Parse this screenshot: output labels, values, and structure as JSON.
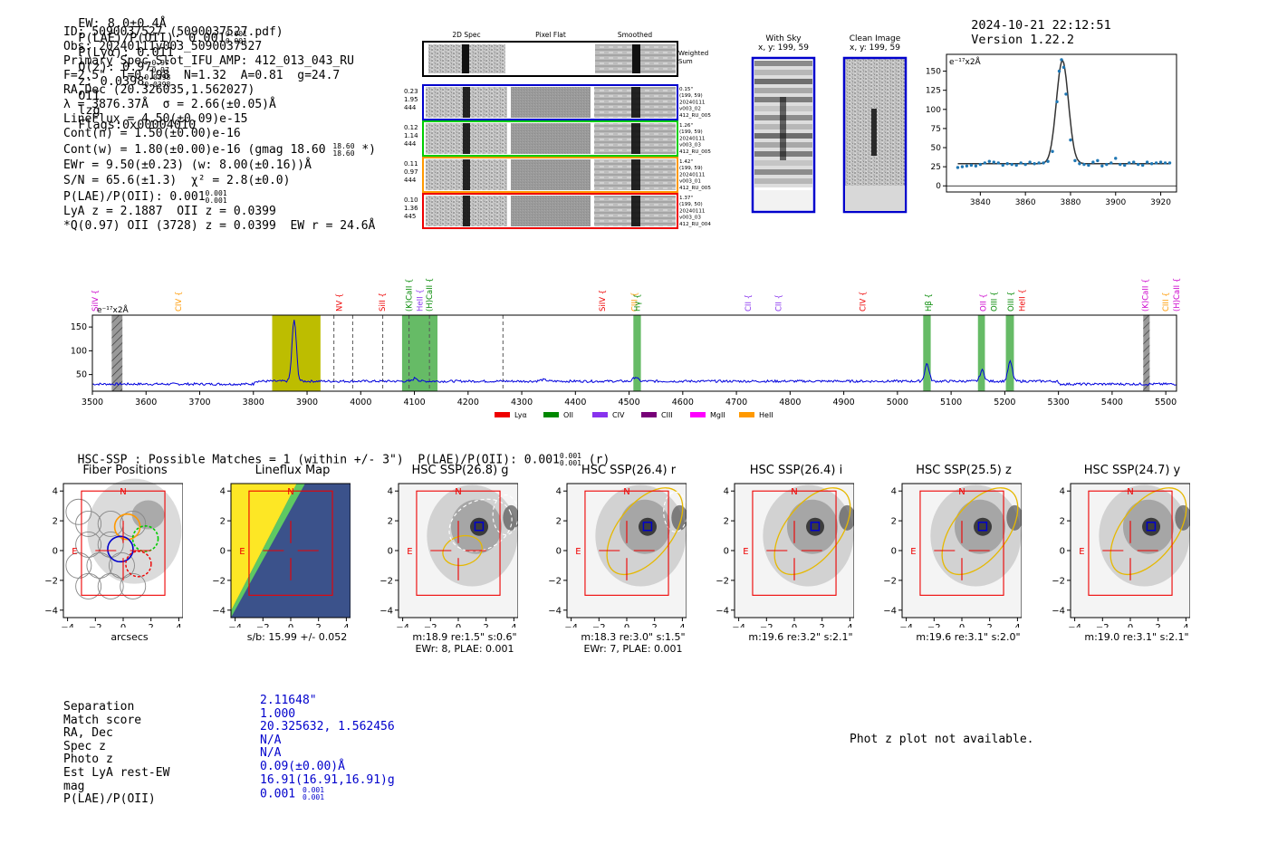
{
  "header": {
    "ew": "EW: 8.0±0.4Å",
    "plae_label": "P(LAE)/P(OII): 0.001",
    "plae_sup": "0.001",
    "plae_sub": "0.001",
    "plya": "P(Lyα): 0.011",
    "qz": "Q(z): 0.97",
    "qz_sup": "0.97",
    "qz_sub": "0.97",
    "z": "z: 0.0398",
    "z_sup": "0.0398",
    "z_sub": "0.0398",
    "z_line": "OII",
    "lzg": "lzg",
    "flags": "Flags:0x00004010",
    "datetime": "2024-10-21 22:12:51",
    "version": "Version 1.22.2"
  },
  "info": {
    "id": "ID: 5090037527 (5090037527.pdf)",
    "obs": "Obs: 20240111v003_5090037527",
    "primary": "Primary Spec_Slot_IFU_AMP: 412_013_043_RU",
    "fparams": "F=2.5\"  T=0.198  N=1.32  A=0.81  g=24.7",
    "radec": "RA,Dec (20.326035,1.562027)",
    "lambda": "λ = 3876.37Å  σ = 2.66(±0.05)Å",
    "lineflux": "LineFlux = 4.50(±0.09)e-15",
    "contn": "Cont(n) = 1.50(±0.00)e-16",
    "contw": "Cont(w) = 1.80(±0.00)e-16 (gmag 18.60",
    "contw_sup": "18.60",
    "contw_sub": "18.60",
    "contw_end": "*)",
    "ewr": "EWr = 9.50(±0.23) (w: 8.00(±0.16))Å",
    "sn": "S/N = 65.6(±1.3)  χ² = 2.8(±0.0)",
    "plae": "P(LAE)/P(OII): 0.001",
    "plae_sup": "0.001",
    "plae_sub": "0.001",
    "lya": "LyA z = 2.1887  OII z = 0.0399",
    "q": "*Q(0.97) OII (3728) z = 0.0399  EW r = 24.6Å"
  },
  "cutouts": {
    "col_titles": [
      "2D Spec",
      "Pixel Flat",
      "Smoothed"
    ],
    "weighted": [
      "Weighted",
      "Sum"
    ],
    "rows": [
      {
        "left": [
          "0.23",
          "1.95",
          "444"
        ],
        "right": [
          "0.15\"",
          "(199, 59)",
          "20240111",
          "v003_02",
          "412_RU_005"
        ],
        "color": "#0000cc"
      },
      {
        "left": [
          "0.12",
          "1.14",
          "444"
        ],
        "right": [
          "1.26\"",
          "(199, 59)",
          "20240111",
          "v003_03",
          "412_RU_005"
        ],
        "color": "#00cc00"
      },
      {
        "left": [
          "0.11",
          "0.97",
          "444"
        ],
        "right": [
          "1.42\"",
          "(199, 59)",
          "20240111",
          "v003_01",
          "412_RU_005"
        ],
        "color": "#ff9900"
      },
      {
        "left": [
          "0.10",
          "1.36",
          "445"
        ],
        "right": [
          "1.37\"",
          "(199, 50)",
          "20240111",
          "v003_03",
          "412_RU_004"
        ],
        "color": "#ee0000"
      }
    ]
  },
  "sky": {
    "with_sky": [
      "With Sky",
      "x, y: 199, 59"
    ],
    "clean": [
      "Clean Image",
      "x, y: 199, 59"
    ]
  },
  "fit_plot": {
    "unit": "e⁻¹⁷x2Å",
    "xticks": [
      "3840",
      "3860",
      "3880",
      "3900",
      "3920"
    ],
    "yticks": [
      "0",
      "25",
      "50",
      "75",
      "100",
      "125",
      "150"
    ]
  },
  "chart_data": [
    {
      "type": "scatter",
      "title": "Emission line fit",
      "ylabel": "e⁻¹⁷x2Å",
      "xlim": [
        3825,
        3927
      ],
      "ylim": [
        -8,
        172
      ],
      "x": [
        3830,
        3832,
        3834,
        3836,
        3838,
        3840,
        3842,
        3844,
        3846,
        3848,
        3850,
        3852,
        3854,
        3856,
        3858,
        3860,
        3862,
        3864,
        3866,
        3868,
        3870,
        3872,
        3874,
        3875,
        3876,
        3877,
        3878,
        3880,
        3882,
        3884,
        3886,
        3888,
        3890,
        3892,
        3894,
        3896,
        3898,
        3900,
        3902,
        3904,
        3906,
        3908,
        3910,
        3912,
        3914,
        3916,
        3918,
        3920,
        3922,
        3924
      ],
      "y": [
        24,
        25,
        26,
        27,
        26,
        28,
        30,
        32,
        31,
        30,
        27,
        29,
        28,
        27,
        30,
        28,
        31,
        29,
        30,
        30,
        32,
        45,
        110,
        150,
        165,
        155,
        120,
        60,
        33,
        29,
        28,
        27,
        31,
        33,
        26,
        28,
        30,
        36,
        28,
        27,
        30,
        31,
        28,
        27,
        31,
        29,
        30,
        31,
        30,
        30
      ],
      "fit_baseline": 29,
      "fit_peak": 164,
      "fit_center": 3876.4,
      "fit_sigma": 2.66
    },
    {
      "type": "line",
      "title": "Full spectrum",
      "ylabel": "e⁻¹⁷x2Å",
      "xlim": [
        3500,
        5520
      ],
      "ylim": [
        15,
        175
      ],
      "xticks": [
        3500,
        3600,
        3700,
        3800,
        3900,
        4000,
        4100,
        4200,
        4300,
        4400,
        4500,
        4600,
        4700,
        4800,
        4900,
        5000,
        5100,
        5200,
        5300,
        5400,
        5500
      ],
      "yticks": [
        50,
        100,
        150
      ],
      "peaks": [
        {
          "x": 3876,
          "y": 162,
          "w": 4
        },
        {
          "x": 4102,
          "y": 40,
          "w": 4
        },
        {
          "x": 4340,
          "y": 36,
          "w": 6
        },
        {
          "x": 4512,
          "y": 42,
          "w": 4
        },
        {
          "x": 5055,
          "y": 70,
          "w": 4
        },
        {
          "x": 5158,
          "y": 56,
          "w": 4
        },
        {
          "x": 5210,
          "y": 74,
          "w": 4
        }
      ],
      "baseline": 33,
      "bands": [
        {
          "x0": 3835,
          "x1": 3925,
          "color": "#bdbd00"
        },
        {
          "x0": 4077,
          "x1": 4143,
          "color": "#66bb66"
        },
        {
          "x0": 4508,
          "x1": 4522,
          "color": "#66bb66"
        },
        {
          "x0": 5048,
          "x1": 5062,
          "color": "#66bb66"
        },
        {
          "x0": 5150,
          "x1": 5163,
          "color": "#66bb66"
        },
        {
          "x0": 5202,
          "x1": 5217,
          "color": "#66bb66"
        }
      ],
      "hatched": [
        {
          "x0": 3536,
          "x1": 3556
        },
        {
          "x0": 5458,
          "x1": 5470
        }
      ],
      "dashed": [
        3950,
        3985,
        4041,
        4090,
        4128,
        4265
      ],
      "line_labels": [
        {
          "x": 3505,
          "text": "SiIV",
          "color": "#cc00cc"
        },
        {
          "x": 3660,
          "text": "CIV",
          "color": "#ff9900"
        },
        {
          "x": 3960,
          "text": "NV",
          "color": "#ee0000"
        },
        {
          "x": 4040,
          "text": "SiII",
          "color": "#ee0000"
        },
        {
          "x": 4090,
          "text": "(K)CaII",
          "color": "#008800"
        },
        {
          "x": 4110,
          "text": "HeII",
          "color": "#8833ee"
        },
        {
          "x": 4128,
          "text": "(H)CaII",
          "color": "#008800"
        },
        {
          "x": 4450,
          "text": "SiIV",
          "color": "#ee0000"
        },
        {
          "x": 4510,
          "text": "CIII",
          "color": "#ff9900"
        },
        {
          "x": 4515,
          "text": "Hγ",
          "color": "#008800"
        },
        {
          "x": 4722,
          "text": "CII",
          "color": "#8833ee"
        },
        {
          "x": 4778,
          "text": "CII",
          "color": "#8833ee"
        },
        {
          "x": 4935,
          "text": "CIV",
          "color": "#ee0000"
        },
        {
          "x": 5058,
          "text": "Hβ",
          "color": "#008800"
        },
        {
          "x": 5160,
          "text": "OII",
          "color": "#cc00cc"
        },
        {
          "x": 5160,
          "text": "OIII",
          "color": "#008800"
        },
        {
          "x": 5211,
          "text": "OIII",
          "color": "#008800"
        },
        {
          "x": 5232,
          "text": "HeII",
          "color": "#ee0000"
        },
        {
          "x": 5462,
          "text": "(K)CaII",
          "color": "#cc00cc"
        },
        {
          "x": 5500,
          "text": "CIII",
          "color": "#ff9900"
        },
        {
          "x": 5500,
          "text": "(H)CaII",
          "color": "#cc00cc"
        }
      ],
      "legend": [
        {
          "name": "Lyα",
          "color": "#ee0000"
        },
        {
          "name": "OII",
          "color": "#008800"
        },
        {
          "name": "CIV",
          "color": "#8833ee"
        },
        {
          "name": "CIII",
          "color": "#770077"
        },
        {
          "name": "MgII",
          "color": "#ff00ff"
        },
        {
          "name": "HeII",
          "color": "#ff9900"
        }
      ]
    }
  ],
  "hsc": {
    "summary": "HSC-SSP : Possible Matches = 1 (within +/- 3\")  P(LAE)/P(OII): 0.001",
    "summary_sup": "0.001",
    "summary_sub": "0.001",
    "summary_end": "(r)",
    "panels": [
      {
        "title": "Fiber Positions",
        "cap1": "arcsecs",
        "cap2": ""
      },
      {
        "title": "Lineflux Map",
        "cap1": "s/b: 15.99 +/- 0.052",
        "cap2": ""
      },
      {
        "title": "HSC SSP(26.8) g",
        "cap1": "m:18.9  re:1.5\"  s:0.6\"",
        "cap2": "EWr: 8, PLAE: 0.001"
      },
      {
        "title": "HSC SSP(26.4) r",
        "cap1": "m:18.3  re:3.0\"  s:1.5\"",
        "cap2": "EWr: 7, PLAE: 0.001"
      },
      {
        "title": "HSC SSP(26.4) i",
        "cap1": "m:19.6  re:3.2\"  s:2.1\"",
        "cap2": ""
      },
      {
        "title": "HSC SSP(25.5) z",
        "cap1": "m:19.6  re:3.1\"  s:2.0\"",
        "cap2": ""
      },
      {
        "title": "HSC SSP(24.7) y",
        "cap1": "m:19.0  re:3.1\"  s:2.1\"",
        "cap2": ""
      }
    ],
    "ticks": [
      "−4",
      "−2",
      "0",
      "2",
      "4"
    ],
    "n_label": "N",
    "e_label": "E"
  },
  "match": {
    "labels": [
      "Separation",
      "Match score",
      "RA, Dec",
      "Spec z",
      "Photo z",
      "Est LyA rest-EW",
      "mag",
      "P(LAE)/P(OII)"
    ],
    "values": [
      "2.11648\"",
      "1.000",
      "20.325632, 1.562456",
      "N/A",
      "N/A",
      "0.09(±0.00)Å",
      "16.91(16.91,16.91)g",
      "0.001"
    ],
    "plae_sup": "0.001",
    "plae_sub": "0.001"
  },
  "photz": "Phot z plot not available."
}
